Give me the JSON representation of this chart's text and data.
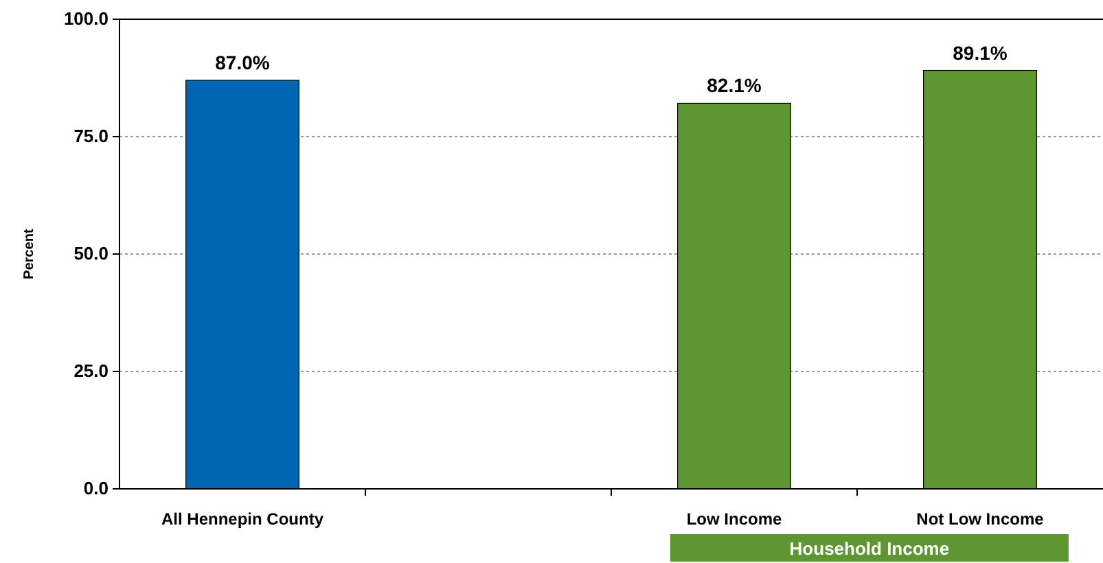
{
  "chart_data": {
    "type": "bar",
    "ylabel": "Percent",
    "categories": [
      "All Hennepin County",
      null,
      "Low Income",
      "Not Low Income"
    ],
    "values": [
      87.0,
      null,
      82.1,
      89.1
    ],
    "colors": [
      "#0066b3",
      null,
      "#5e9732",
      "#5e9732"
    ],
    "value_labels": [
      "87.0%",
      null,
      "82.1%",
      "89.1%"
    ],
    "ylim": [
      0,
      100
    ],
    "yticks": [
      {
        "value": 0,
        "label": "0.0"
      },
      {
        "value": 25,
        "label": "25.0"
      },
      {
        "value": 50,
        "label": "50.0"
      },
      {
        "value": 75,
        "label": "75.0"
      },
      {
        "value": 100,
        "label": "100.0"
      }
    ],
    "grid": "y",
    "annotations": [
      "Household Income"
    ]
  }
}
